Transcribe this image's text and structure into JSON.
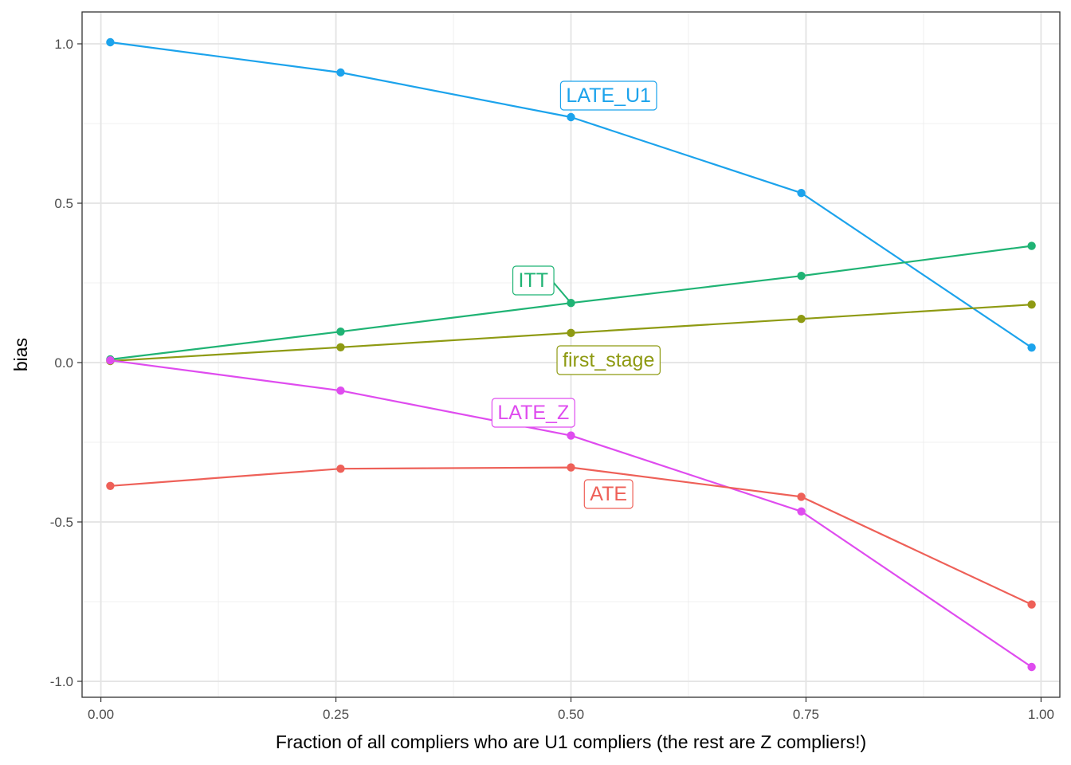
{
  "chart_data": {
    "type": "line",
    "title": "",
    "xlabel": "Fraction of all compliers who are U1 compliers (the rest are Z compliers!)",
    "ylabel": "bias",
    "xlim": [
      -0.02,
      1.02
    ],
    "ylim": [
      -1.05,
      1.1
    ],
    "x_ticks": [
      0.0,
      0.25,
      0.5,
      0.75,
      1.0
    ],
    "x_tick_labels": [
      "0.00",
      "0.25",
      "0.50",
      "0.75",
      "1.00"
    ],
    "y_ticks": [
      -1.0,
      -0.5,
      0.0,
      0.5,
      1.0
    ],
    "y_tick_labels": [
      "-1.0",
      "-0.5",
      "0.0",
      "0.5",
      "1.0"
    ],
    "grid": true,
    "legend": "none (direct labels)",
    "x": [
      0.01,
      0.255,
      0.5,
      0.745,
      0.99
    ],
    "series": [
      {
        "name": "LATE_U1",
        "color": "#1ca3ec",
        "values": [
          1.005,
          0.91,
          0.77,
          0.532,
          0.047
        ],
        "label_at": [
          0.54,
          0.84
        ]
      },
      {
        "name": "ITT",
        "color": "#1fb374",
        "values": [
          0.01,
          0.097,
          0.187,
          0.272,
          0.366
        ],
        "label_at": [
          0.46,
          0.26
        ],
        "label_leader_to_point": 2
      },
      {
        "name": "first_stage",
        "color": "#8e9a12",
        "values": [
          0.005,
          0.048,
          0.093,
          0.137,
          0.182
        ],
        "label_at": [
          0.54,
          0.01
        ]
      },
      {
        "name": "LATE_Z",
        "color": "#df4cef",
        "values": [
          0.007,
          -0.088,
          -0.229,
          -0.467,
          -0.955
        ],
        "label_at": [
          0.46,
          -0.155
        ]
      },
      {
        "name": "ATE",
        "color": "#ee6058",
        "values": [
          -0.387,
          -0.333,
          -0.329,
          -0.421,
          -0.759
        ],
        "label_at": [
          0.54,
          -0.41
        ]
      }
    ]
  }
}
